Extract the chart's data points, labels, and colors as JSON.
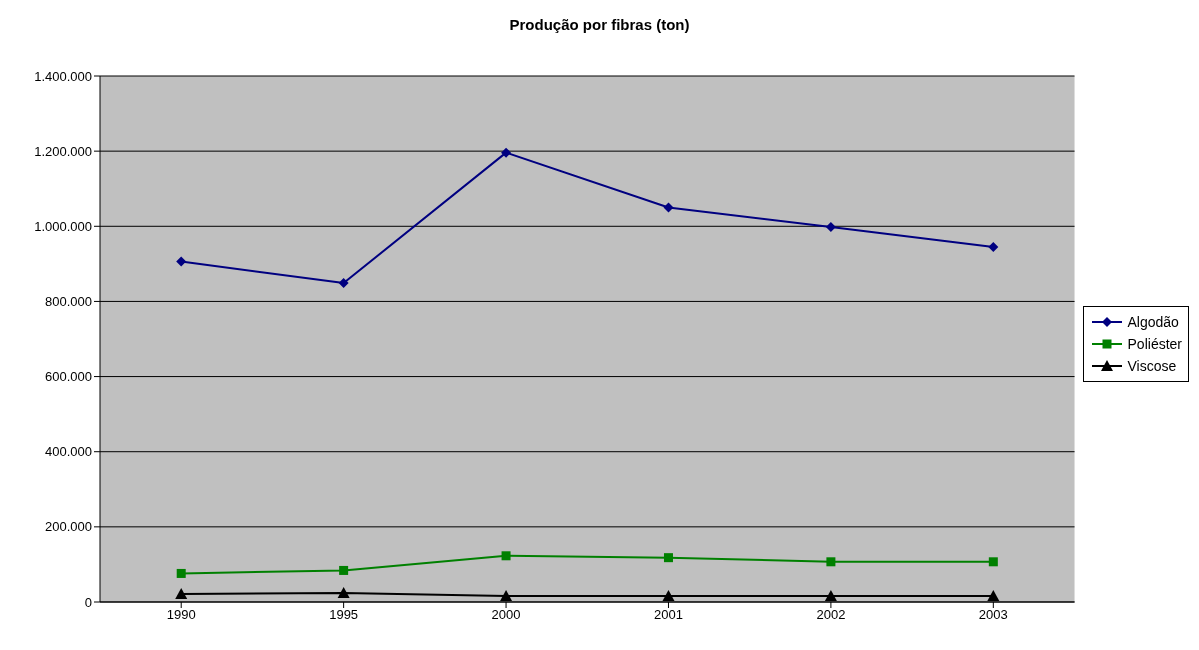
{
  "chart_data": {
    "type": "line",
    "title": "Produção por fibras (ton)",
    "categories": [
      "1990",
      "1995",
      "2000",
      "2001",
      "2002",
      "2003"
    ],
    "series": [
      {
        "name": "Algodão",
        "color": "#000080",
        "marker": "diamond",
        "values": [
          906000,
          849000,
          1196000,
          1050000,
          998000,
          945000
        ]
      },
      {
        "name": "Poliéster",
        "color": "#008000",
        "marker": "square",
        "values": [
          76000,
          84000,
          123000,
          118000,
          107000,
          107000
        ]
      },
      {
        "name": "Viscose",
        "color": "#000000",
        "marker": "triangle",
        "values": [
          21000,
          24000,
          16000,
          16000,
          16000,
          16000
        ]
      }
    ],
    "ylim": [
      0,
      1400000
    ],
    "yticks": [
      {
        "value": 0,
        "label": "0"
      },
      {
        "value": 200000,
        "label": "200.000"
      },
      {
        "value": 400000,
        "label": "400.000"
      },
      {
        "value": 600000,
        "label": "600.000"
      },
      {
        "value": 800000,
        "label": "800.000"
      },
      {
        "value": 1000000,
        "label": "1.000.000"
      },
      {
        "value": 1200000,
        "label": "1.200.000"
      },
      {
        "value": 1400000,
        "label": "1.400.000"
      }
    ],
    "grid": "y",
    "legend": "right"
  }
}
